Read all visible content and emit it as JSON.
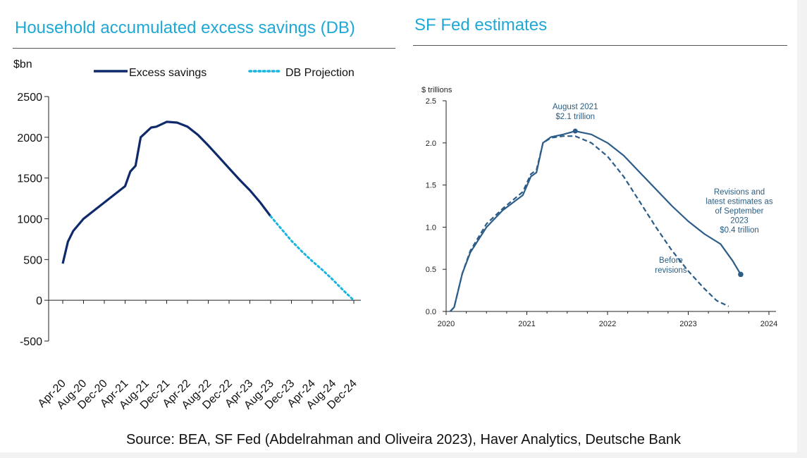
{
  "chart_data": [
    {
      "type": "line",
      "title": "Household accumulated excess savings (DB)",
      "ylabel": "$bn",
      "xlabel": "",
      "ylim": [
        -500,
        2500
      ],
      "yticks": [
        2500,
        2000,
        1500,
        1000,
        500,
        0,
        -500
      ],
      "categories": [
        "Apr-20",
        "Aug-20",
        "Dec-20",
        "Apr-21",
        "Aug-21",
        "Dec-21",
        "Apr-22",
        "Aug-22",
        "Dec-22",
        "Apr-23",
        "Aug-23",
        "Dec-23",
        "Apr-24",
        "Aug-24",
        "Dec-24"
      ],
      "colors": {
        "excess": "#0f2a6b",
        "projection": "#19b4e0"
      },
      "legend_position": "top",
      "series": [
        {
          "name": "Excess savings",
          "style": "solid",
          "x": [
            0,
            0.25,
            0.5,
            1,
            1.5,
            2,
            2.5,
            3,
            3.25,
            3.5,
            3.75,
            4,
            4.25,
            4.5,
            5,
            5.5,
            6,
            6.5,
            7,
            7.5,
            8,
            8.5,
            9,
            9.5,
            10
          ],
          "values": [
            450,
            720,
            850,
            1000,
            1100,
            1200,
            1300,
            1400,
            1580,
            1650,
            2000,
            2060,
            2120,
            2130,
            2190,
            2180,
            2130,
            2030,
            1900,
            1760,
            1620,
            1480,
            1350,
            1200,
            1030
          ]
        },
        {
          "name": "DB Projection",
          "style": "dotted",
          "x": [
            10,
            10.5,
            11,
            11.5,
            12,
            12.5,
            13,
            13.5,
            14
          ],
          "values": [
            1030,
            880,
            730,
            600,
            480,
            370,
            250,
            120,
            0
          ]
        }
      ]
    },
    {
      "type": "line",
      "title": "SF Fed estimates",
      "ylabel": "$ trillions",
      "xlabel": "",
      "xlim": [
        2020,
        2024
      ],
      "ylim": [
        0,
        2.5
      ],
      "xticks": [
        "2020",
        "2021",
        "2022",
        "2023",
        "2024"
      ],
      "yticks": [
        "0.0",
        "0.5",
        "1.0",
        "1.5",
        "2.0",
        "2.5"
      ],
      "colors": {
        "line": "#2c5d88"
      },
      "series": [
        {
          "name": "Revisions and latest estimates as of September 2023",
          "style": "solid",
          "x": [
            2020.05,
            2020.1,
            2020.2,
            2020.3,
            2020.5,
            2020.7,
            2020.95,
            2021.05,
            2021.12,
            2021.2,
            2021.3,
            2021.45,
            2021.6,
            2021.8,
            2022.0,
            2022.2,
            2022.4,
            2022.6,
            2022.8,
            2023.0,
            2023.2,
            2023.4,
            2023.55,
            2023.65
          ],
          "values": [
            0.0,
            0.05,
            0.45,
            0.7,
            1.0,
            1.2,
            1.38,
            1.6,
            1.65,
            2.0,
            2.07,
            2.1,
            2.14,
            2.1,
            2.0,
            1.85,
            1.65,
            1.45,
            1.25,
            1.07,
            0.92,
            0.8,
            0.6,
            0.44
          ]
        },
        {
          "name": "Before revisions",
          "style": "dashed",
          "x": [
            2020.05,
            2020.1,
            2020.2,
            2020.3,
            2020.5,
            2020.7,
            2020.95,
            2021.05,
            2021.12,
            2021.2,
            2021.3,
            2021.45,
            2021.6,
            2021.8,
            2022.0,
            2022.2,
            2022.4,
            2022.6,
            2022.8,
            2023.0,
            2023.2,
            2023.35,
            2023.5
          ],
          "values": [
            0.0,
            0.05,
            0.45,
            0.72,
            1.04,
            1.22,
            1.42,
            1.63,
            1.68,
            2.0,
            2.06,
            2.08,
            2.08,
            2.0,
            1.84,
            1.6,
            1.3,
            1.0,
            0.72,
            0.48,
            0.27,
            0.13,
            0.06
          ]
        }
      ],
      "annotations": [
        {
          "lines": [
            "August 2021",
            "$2.1 trillion"
          ],
          "x": 2021.6,
          "y": 2.14
        },
        {
          "lines": [
            "Revisions and",
            "latest estimates as",
            "of September",
            "2023",
            "$0.4 trillion"
          ],
          "x": 2023.65,
          "y": 0.44
        },
        {
          "lines": [
            "Before",
            "revisions"
          ],
          "x": 2023.0,
          "y": 0.6
        }
      ]
    }
  ],
  "source": "Source: BEA, SF Fed (Abdelrahman and Oliveira 2023), Haver Analytics, Deutsche Bank"
}
